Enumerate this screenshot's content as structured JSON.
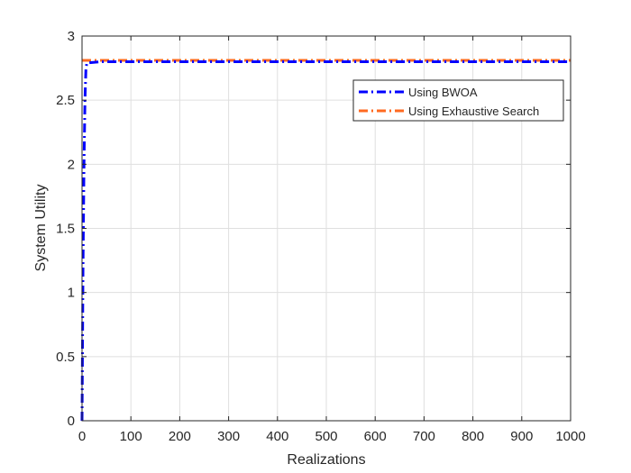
{
  "chart_data": {
    "type": "line",
    "title": "",
    "xlabel": "Realizations",
    "ylabel": "System Utility",
    "xlim": [
      0,
      1000
    ],
    "ylim": [
      0,
      3
    ],
    "xticks": [
      0,
      100,
      200,
      300,
      400,
      500,
      600,
      700,
      800,
      900,
      1000
    ],
    "yticks": [
      0,
      0.5,
      1,
      1.5,
      2,
      2.5,
      3
    ],
    "xtick_labels": [
      "0",
      "100",
      "200",
      "300",
      "400",
      "500",
      "600",
      "700",
      "800",
      "900",
      "1000"
    ],
    "ytick_labels": [
      "0",
      "0.5",
      "1",
      "1.5",
      "2",
      "2.5",
      "3"
    ],
    "grid": true,
    "legend_position": "top-right",
    "series": [
      {
        "name": "Using BWOA",
        "color": "#0000ff",
        "style": "dash-dot",
        "x": [
          0,
          2,
          4,
          6,
          8,
          10,
          40,
          1000
        ],
        "y": [
          0,
          1.2,
          2.0,
          2.5,
          2.75,
          2.79,
          2.8,
          2.8
        ]
      },
      {
        "name": "Using Exhaustive Search",
        "color": "#ff6a21",
        "style": "dash-dot",
        "x": [
          0,
          1000
        ],
        "y": [
          2.81,
          2.81
        ]
      }
    ]
  }
}
